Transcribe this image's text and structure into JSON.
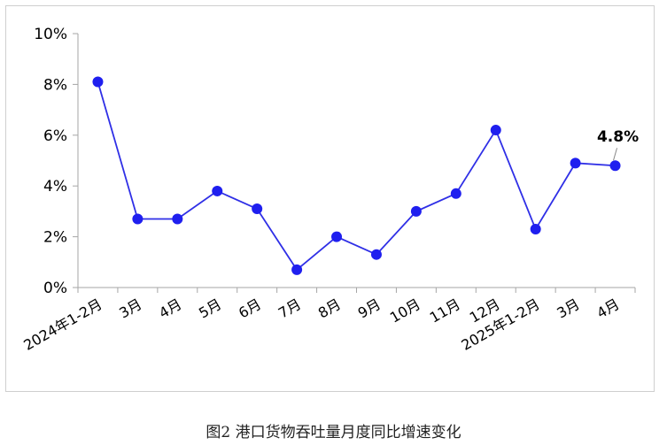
{
  "caption": "图2 港口货物吞吐量月度同比增速变化",
  "colors": {
    "line": "#2f2fe6",
    "marker": "#1f1fef",
    "axis": "#a6a6a6",
    "frame": "#cfcfcf"
  },
  "chart_data": {
    "type": "line",
    "title": "",
    "xlabel": "",
    "ylabel": "",
    "ylim": [
      0,
      10
    ],
    "y_ticks": [
      "0%",
      "2%",
      "4%",
      "6%",
      "8%",
      "10%"
    ],
    "grid": false,
    "categories": [
      "2024年1-2月",
      "3月",
      "4月",
      "5月",
      "6月",
      "7月",
      "8月",
      "9月",
      "10月",
      "11月",
      "12月",
      "2025年1-2月",
      "3月",
      "4月"
    ],
    "series": [
      {
        "values": [
          8.1,
          2.7,
          2.7,
          3.8,
          3.1,
          0.7,
          2.0,
          1.3,
          3.0,
          3.7,
          6.2,
          2.3,
          4.9,
          4.8
        ]
      }
    ],
    "annotations": [
      {
        "index": 13,
        "text": "4.8%"
      }
    ]
  }
}
